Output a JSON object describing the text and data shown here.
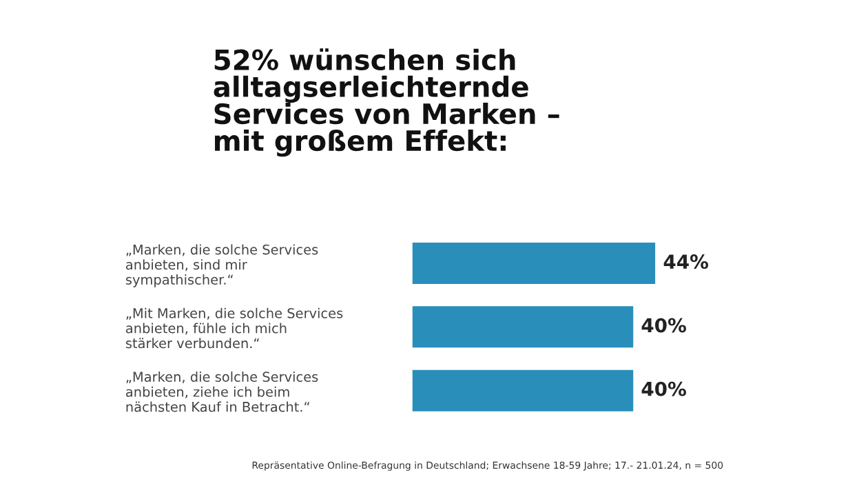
{
  "chart_data": {
    "type": "bar",
    "orientation": "horizontal",
    "title": "52% wünschen sich\nalltagserleichternde\nServices von Marken –\nmit großem Effekt:",
    "categories": [
      "„Marken, die solche Services\nanbieten, sind mir\nsympathischer.“",
      "„Mit Marken, die solche Services\nanbieten, fühle ich mich\nstärker verbunden.“",
      "„Marken, die solche Services\nanbieten, ziehe ich beim\nnächsten Kauf in Betracht.“"
    ],
    "values": [
      44,
      40,
      40
    ],
    "value_labels": [
      "44%",
      "40%",
      "40%"
    ],
    "color": "#2a8ebb",
    "tick_labels": "y",
    "annotations": [
      "Repräsentative Online-Befragung in Deutschland; Erwachsene 18-59 Jahre; 17.- 21.01.24, n = 500"
    ]
  }
}
